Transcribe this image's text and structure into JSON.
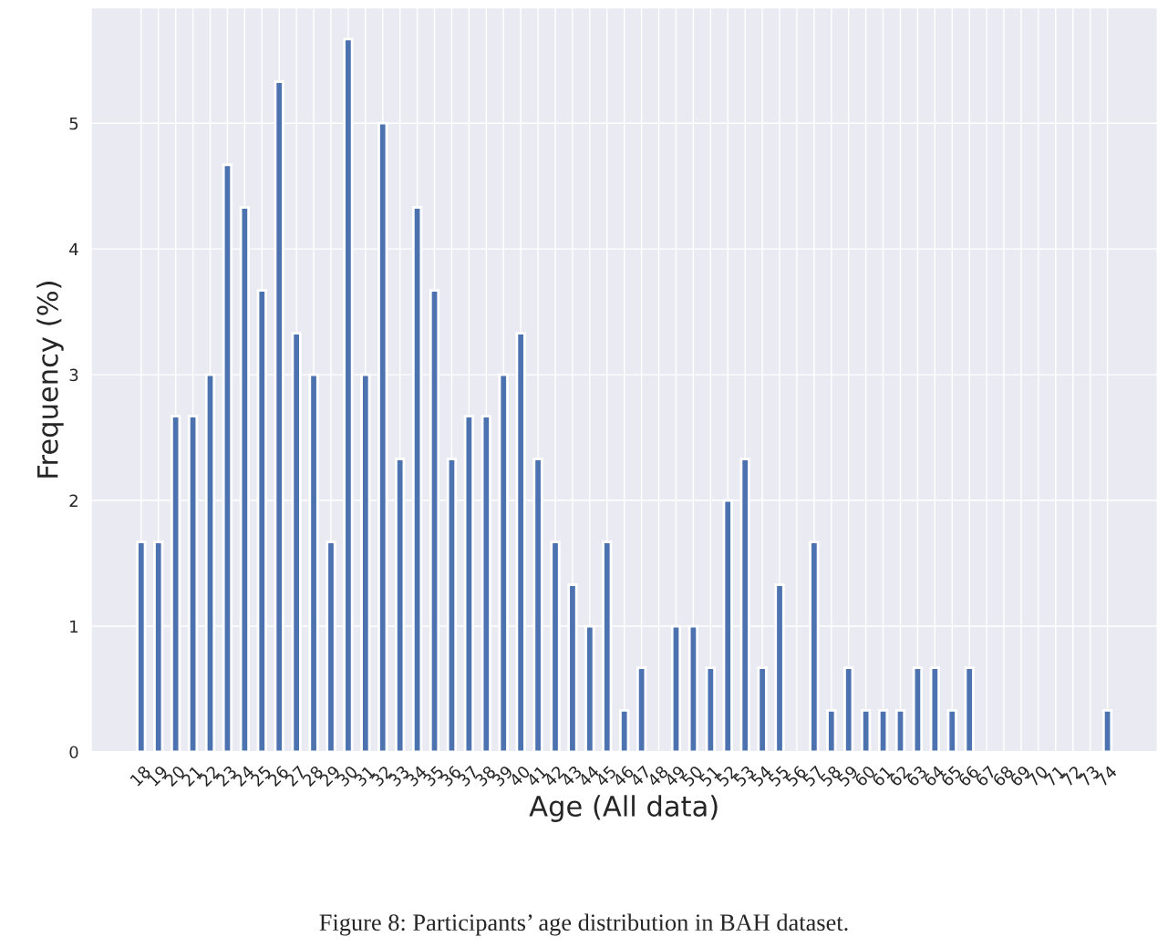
{
  "chart_data": {
    "type": "bar",
    "xlabel": "Age (All data)",
    "ylabel": "Frequency (%)",
    "categories": [
      "18",
      "19",
      "20",
      "21",
      "22",
      "23",
      "24",
      "25",
      "26",
      "27",
      "28",
      "29",
      "30",
      "31",
      "32",
      "33",
      "34",
      "35",
      "36",
      "37",
      "38",
      "39",
      "40",
      "41",
      "42",
      "43",
      "44",
      "45",
      "46",
      "47",
      "48",
      "49",
      "50",
      "51",
      "52",
      "53",
      "54",
      "55",
      "56",
      "57",
      "58",
      "59",
      "60",
      "61",
      "62",
      "63",
      "64",
      "65",
      "66",
      "67",
      "68",
      "69",
      "70",
      "71",
      "72",
      "73",
      "74"
    ],
    "values": [
      1.67,
      1.67,
      2.67,
      2.67,
      3,
      4.67,
      4.33,
      3.67,
      5.33,
      3.33,
      3,
      1.67,
      5.67,
      3,
      5,
      2.33,
      4.33,
      3.67,
      2.33,
      2.67,
      2.67,
      3,
      3.33,
      2.33,
      1.67,
      1.33,
      1,
      1.67,
      0.33,
      0.67,
      0,
      1,
      1,
      0.67,
      2,
      2.33,
      0.67,
      1.33,
      0,
      1.67,
      0.33,
      0.67,
      0.33,
      0.33,
      0.33,
      0.67,
      0.67,
      0.33,
      0.67,
      0,
      0,
      0,
      0,
      0,
      0,
      0,
      0.33
    ],
    "color": "#4c72b0",
    "ylim": [
      0,
      5.92
    ],
    "yticks": [
      0,
      1,
      2,
      3,
      4,
      5
    ],
    "grid": true,
    "annotations": [
      "Figure 8: Participants’ age distribution in BAH dataset."
    ]
  }
}
